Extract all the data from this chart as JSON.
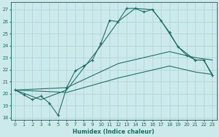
{
  "xlabel": "Humidex (Indice chaleur)",
  "bg_color": "#cce9ec",
  "grid_color": "#b0d4d8",
  "line_color": "#1a6b60",
  "xlim": [
    -0.5,
    23.5
  ],
  "ylim": [
    17.8,
    27.6
  ],
  "yticks": [
    18,
    19,
    20,
    21,
    22,
    23,
    24,
    25,
    26,
    27
  ],
  "xticks": [
    0,
    1,
    2,
    3,
    4,
    5,
    6,
    7,
    8,
    9,
    10,
    11,
    12,
    13,
    14,
    15,
    16,
    17,
    18,
    19,
    20,
    21,
    22,
    23
  ],
  "line1_x": [
    0,
    1,
    2,
    3,
    4,
    5,
    6,
    7,
    8,
    9,
    10,
    11,
    12,
    13,
    14,
    15,
    16,
    17,
    18,
    19,
    20,
    21,
    22,
    23
  ],
  "line1_y": [
    20.3,
    19.9,
    19.5,
    19.8,
    19.2,
    18.2,
    20.5,
    21.9,
    22.3,
    22.8,
    24.2,
    26.1,
    26.0,
    27.1,
    27.1,
    26.8,
    27.0,
    26.1,
    25.1,
    23.9,
    23.2,
    22.8,
    22.8,
    21.5
  ],
  "line2_x": [
    0,
    3,
    6,
    10,
    12,
    14,
    16,
    17,
    19,
    21,
    22,
    23
  ],
  "line2_y": [
    20.3,
    19.5,
    20.3,
    24.0,
    26.0,
    27.1,
    27.0,
    26.1,
    23.9,
    22.8,
    22.8,
    21.6
  ],
  "line3_x": [
    0,
    6,
    12,
    18,
    21,
    23
  ],
  "line3_y": [
    20.3,
    20.5,
    22.5,
    23.5,
    23.0,
    22.8
  ],
  "line4_x": [
    0,
    6,
    12,
    18,
    21,
    23
  ],
  "line4_y": [
    20.3,
    20.1,
    21.3,
    22.3,
    21.8,
    21.6
  ]
}
